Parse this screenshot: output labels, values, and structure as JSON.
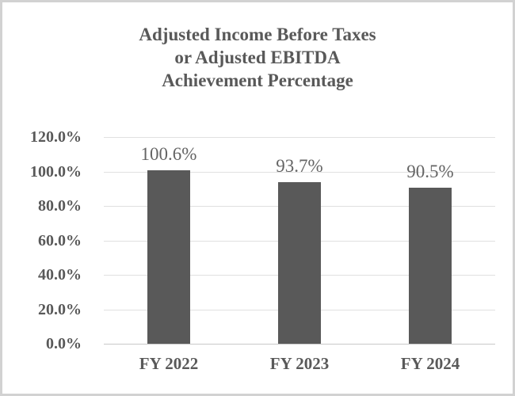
{
  "window": {
    "background_color": "#ffffff",
    "border_color": "#d2d2d2"
  },
  "chart_data": {
    "type": "bar",
    "title": "Adjusted Income Before Taxes or Adjusted EBITDA Achievement Percentage",
    "title_lines": [
      "Adjusted Income Before Taxes",
      "or Adjusted EBITDA",
      "Achievement Percentage"
    ],
    "categories": [
      "FY 2022",
      "FY 2023",
      "FY 2024"
    ],
    "values": [
      100.6,
      93.7,
      90.5
    ],
    "data_labels": [
      "100.6%",
      "93.7%",
      "90.5%"
    ],
    "y_ticks": [
      {
        "value": 0,
        "label": "0.0%"
      },
      {
        "value": 20,
        "label": "20.0%"
      },
      {
        "value": 40,
        "label": "40.0%"
      },
      {
        "value": 60,
        "label": "60.0%"
      },
      {
        "value": 80,
        "label": "80.0%"
      },
      {
        "value": 100,
        "label": "100.0%"
      },
      {
        "value": 120,
        "label": "120.0%"
      }
    ],
    "ylim": [
      0,
      120
    ],
    "xlabel": "",
    "ylabel": "",
    "grid": "horizontal",
    "legend": "none",
    "colors": {
      "bar": "#595959",
      "gridline": "#e0e0e0",
      "axis_line": "#c9c9c9",
      "title_text": "#595959",
      "axis_text": "#595959",
      "data_label_text": "#646464"
    }
  }
}
